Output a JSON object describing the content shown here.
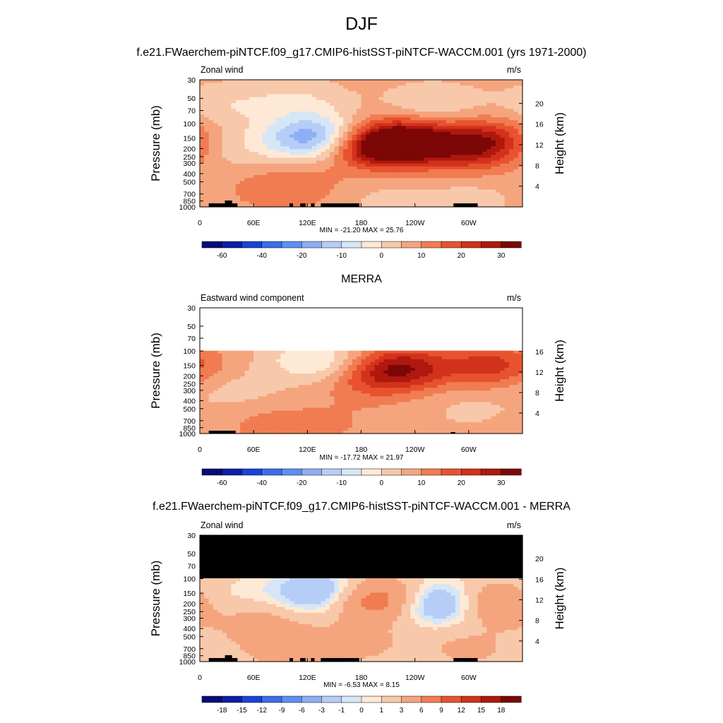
{
  "figure": {
    "title": "DJF"
  },
  "chart_data": [
    {
      "type": "heatmap",
      "title": "f.e21.FWaerchem-piNTCF.f09_g17.CMIP6-histSST-piNTCF-WACCM.001 (yrs 1971-2000)",
      "left_label": "Zonal wind",
      "units": "m/s",
      "ylabel": "Pressure (mb)",
      "y2label": "Height (km)",
      "x_ticks": [
        "0",
        "60E",
        "120E",
        "180",
        "120W",
        "60W"
      ],
      "y_ticks": [
        "30",
        "50",
        "70",
        "100",
        "150",
        "200",
        "250",
        "300",
        "400",
        "500",
        "700",
        "850",
        "1000"
      ],
      "y2_ticks": [
        "20",
        "16",
        "12",
        "8",
        "4"
      ],
      "stats": "MIN = -21.20  MAX =  25.76",
      "colorbar_labels": [
        "-60",
        "-40",
        "-20",
        "-10",
        "0",
        "10",
        "20",
        "30"
      ],
      "masked_top": false,
      "top_missing": false,
      "blobs": [
        {
          "lon": 130,
          "p": 140,
          "v": -20
        },
        {
          "lon": 112,
          "p": 175,
          "v": -8
        },
        {
          "lon": 210,
          "p": 175,
          "v": 25
        },
        {
          "lon": 240,
          "p": 165,
          "v": 17
        },
        {
          "lon": 180,
          "p": 200,
          "v": 9
        },
        {
          "lon": 320,
          "p": 165,
          "v": 21
        },
        {
          "lon": 300,
          "p": 250,
          "v": 7
        },
        {
          "lon": 20,
          "p": 190,
          "v": -6
        },
        {
          "lon": 260,
          "p": 60,
          "v": -7
        },
        {
          "lon": 110,
          "p": 55,
          "v": -7
        },
        {
          "lon": 30,
          "p": 60,
          "v": -6
        },
        {
          "lon": 110,
          "p": 550,
          "v": 6
        },
        {
          "lon": 70,
          "p": 650,
          "v": 3
        },
        {
          "lon": 200,
          "p": 800,
          "v": -3
        },
        {
          "lon": 300,
          "p": 800,
          "v": -4
        }
      ],
      "base": 2.0
    },
    {
      "type": "heatmap",
      "title": "MERRA",
      "left_label": "Eastward wind component",
      "units": "m/s",
      "ylabel": "Pressure (mb)",
      "y2label": "Height (km)",
      "x_ticks": [
        "0",
        "60E",
        "120E",
        "180",
        "120W",
        "60W"
      ],
      "y_ticks": [
        "30",
        "50",
        "70",
        "100",
        "150",
        "200",
        "250",
        "300",
        "400",
        "500",
        "700",
        "850",
        "1000"
      ],
      "y2_ticks": [
        "16",
        "12",
        "8",
        "4"
      ],
      "stats": "MIN = -17.72  MAX =  21.97",
      "colorbar_labels": [
        "-60",
        "-40",
        "-20",
        "-10",
        "0",
        "10",
        "20",
        "30"
      ],
      "masked_top": false,
      "top_missing": true,
      "blobs": [
        {
          "lon": 130,
          "p": 130,
          "v": -13
        },
        {
          "lon": 225,
          "p": 160,
          "v": 21
        },
        {
          "lon": 190,
          "p": 230,
          "v": 8
        },
        {
          "lon": 325,
          "p": 150,
          "v": 15
        },
        {
          "lon": 40,
          "p": 300,
          "v": -4
        },
        {
          "lon": 80,
          "p": 800,
          "v": 5
        },
        {
          "lon": 150,
          "p": 750,
          "v": 3
        },
        {
          "lon": 300,
          "p": 500,
          "v": -3
        }
      ],
      "base": 2.0
    },
    {
      "type": "heatmap",
      "title": "f.e21.FWaerchem-piNTCF.f09_g17.CMIP6-histSST-piNTCF-WACCM.001 - MERRA",
      "left_label": "Zonal wind",
      "units": "m/s",
      "ylabel": "Pressure (mb)",
      "y2label": "Height (km)",
      "x_ticks": [
        "0",
        "60E",
        "120E",
        "180",
        "120W",
        "60W"
      ],
      "y_ticks": [
        "30",
        "50",
        "70",
        "100",
        "150",
        "200",
        "250",
        "300",
        "400",
        "500",
        "700",
        "850",
        "1000"
      ],
      "y2_ticks": [
        "20",
        "16",
        "12",
        "8",
        "4"
      ],
      "stats": "MIN =  -6.53  MAX =   8.15",
      "colorbar_labels": [
        "-18",
        "-15",
        "-12",
        "-9",
        "-6",
        "-3",
        "-1",
        "0",
        "1",
        "3",
        "6",
        "9",
        "12",
        "15",
        "18"
      ],
      "masked_top": true,
      "top_missing": false,
      "blobs": [
        {
          "lon": 135,
          "p": 150,
          "v": -6
        },
        {
          "lon": 270,
          "p": 200,
          "v": -7
        },
        {
          "lon": 195,
          "p": 180,
          "v": 8
        },
        {
          "lon": 330,
          "p": 200,
          "v": 7
        },
        {
          "lon": 60,
          "p": 300,
          "v": 3
        },
        {
          "lon": 18,
          "p": 200,
          "v": -3
        },
        {
          "lon": 180,
          "p": 600,
          "v": 2
        },
        {
          "lon": 100,
          "p": 700,
          "v": 3
        },
        {
          "lon": 300,
          "p": 700,
          "v": 2
        }
      ],
      "base": 1.5
    }
  ],
  "colors": {
    "standard": [
      "#0a0a7a",
      "#0b1fa6",
      "#1a43d6",
      "#3a6ee8",
      "#5d8ff0",
      "#8eaef5",
      "#b6cdf7",
      "#d6e6f7",
      "#fde9d6",
      "#f8c8aa",
      "#f5a57e",
      "#f17c52",
      "#e8522f",
      "#d2321c",
      "#b0180e",
      "#7c0707"
    ],
    "diff": [
      "#0a0a7a",
      "#0b1fa6",
      "#1a43d6",
      "#3a6ee8",
      "#5d8ff0",
      "#8eaef5",
      "#b6cdf7",
      "#d6e6f7",
      "#fde9d6",
      "#f8c8aa",
      "#f5a57e",
      "#f17c52",
      "#e8522f",
      "#d2321c",
      "#b0180e",
      "#7c0707"
    ]
  }
}
